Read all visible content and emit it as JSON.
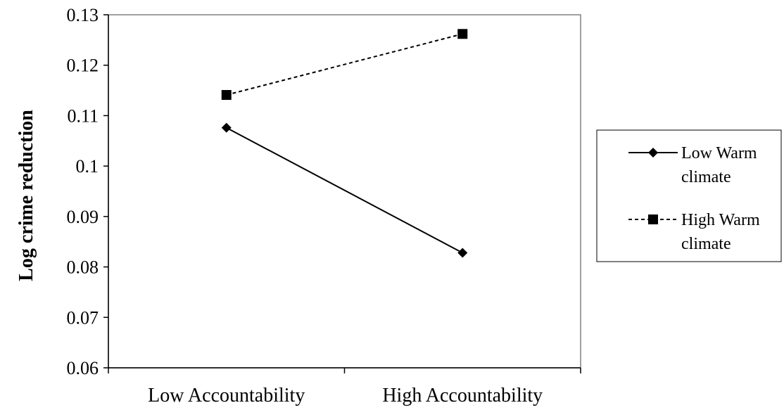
{
  "chart_data": {
    "type": "line",
    "title": "",
    "xlabel": "",
    "ylabel": "Log crime reduction",
    "ylim": [
      0.06,
      0.13
    ],
    "yticks": [
      0.06,
      0.07,
      0.08,
      0.09,
      0.1,
      0.11,
      0.12,
      0.13
    ],
    "ytick_labels": [
      "0.06",
      "0.07",
      "0.08",
      "0.09",
      "0.1",
      "0.11",
      "0.12",
      "0.13"
    ],
    "categories": [
      "Low Accountability",
      "High Accountability"
    ],
    "grid": false,
    "legend_position": "right",
    "series": [
      {
        "name_lines": [
          "Low Warm",
          "climate"
        ],
        "values": [
          0.1076,
          0.0828
        ],
        "marker": "diamond",
        "line_style": "solid",
        "color": "#000000"
      },
      {
        "name_lines": [
          "High Warm",
          "climate"
        ],
        "values": [
          0.1141,
          0.1262
        ],
        "marker": "square",
        "line_style": "dashed",
        "color": "#000000"
      }
    ]
  }
}
